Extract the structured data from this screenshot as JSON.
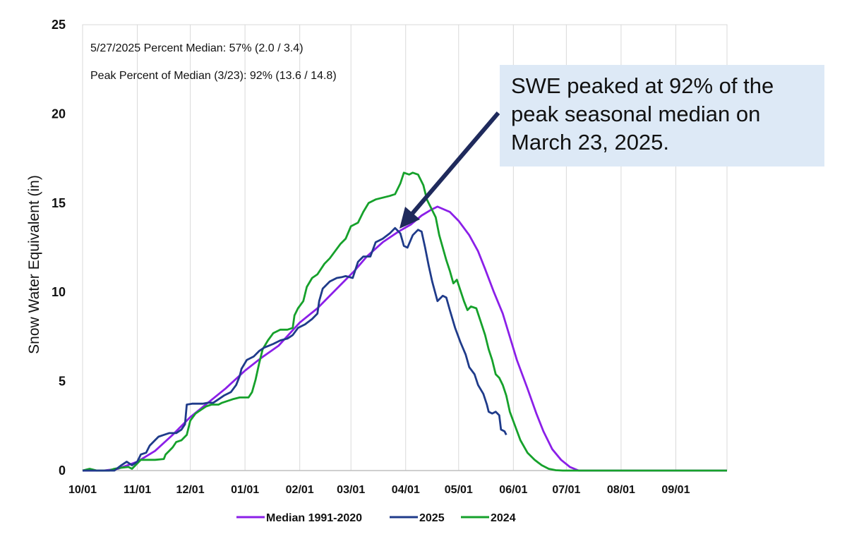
{
  "chart_data": {
    "type": "line",
    "ylabel": "Snow Water Equivalent (in)",
    "xlabel": "",
    "ylim": [
      0,
      25
    ],
    "yticks": [
      "0",
      "5",
      "10",
      "15",
      "20",
      "25"
    ],
    "x_axis": "day of water year (0 = 10/01)",
    "xticks": [
      "10/01",
      "11/01",
      "12/01",
      "01/01",
      "02/01",
      "03/01",
      "04/01",
      "05/01",
      "06/01",
      "07/01",
      "08/01",
      "09/01"
    ],
    "grid": "vertical gridlines at month starts",
    "legend_position": "bottom-center",
    "annotations": [
      "5/27/2025 Percent Median: 57% (2.0 / 3.4)",
      "Peak Percent of Median (3/23): 92% (13.6 / 14.8)"
    ],
    "callout": "SWE peaked at 92% of the peak seasonal median on March 23, 2025.",
    "series": [
      {
        "name": "Median 1991-2020",
        "color": "#8b1fe8",
        "points": [
          [
            0,
            0
          ],
          [
            12,
            0
          ],
          [
            20,
            0.1
          ],
          [
            31,
            0.5
          ],
          [
            41,
            1.1
          ],
          [
            51,
            2.0
          ],
          [
            61,
            3.0
          ],
          [
            71,
            3.8
          ],
          [
            81,
            4.6
          ],
          [
            92,
            5.6
          ],
          [
            101,
            6.3
          ],
          [
            111,
            7.0
          ],
          [
            123,
            8.3
          ],
          [
            133,
            9.1
          ],
          [
            144,
            10.2
          ],
          [
            154,
            11.2
          ],
          [
            161,
            12.0
          ],
          [
            170,
            12.8
          ],
          [
            179,
            13.4
          ],
          [
            186,
            13.8
          ],
          [
            192,
            14.3
          ],
          [
            197,
            14.6
          ],
          [
            201,
            14.8
          ],
          [
            208,
            14.5
          ],
          [
            213,
            14.0
          ],
          [
            219,
            13.2
          ],
          [
            224,
            12.3
          ],
          [
            228,
            11.3
          ],
          [
            233,
            10.0
          ],
          [
            238,
            8.8
          ],
          [
            242,
            7.5
          ],
          [
            246,
            6.2
          ],
          [
            252,
            4.6
          ],
          [
            257,
            3.2
          ],
          [
            261,
            2.2
          ],
          [
            266,
            1.2
          ],
          [
            271,
            0.6
          ],
          [
            276,
            0.2
          ],
          [
            281,
            0
          ],
          [
            365,
            0
          ]
        ]
      },
      {
        "name": "2025",
        "color": "#1f3b8a",
        "points": [
          [
            0,
            0
          ],
          [
            12,
            0
          ],
          [
            18,
            0
          ],
          [
            22,
            0.3
          ],
          [
            25,
            0.5
          ],
          [
            28,
            0.3
          ],
          [
            31,
            0.5
          ],
          [
            33,
            0.9
          ],
          [
            36,
            1.0
          ],
          [
            38,
            1.4
          ],
          [
            41,
            1.7
          ],
          [
            43,
            1.9
          ],
          [
            46,
            2.0
          ],
          [
            49,
            2.1
          ],
          [
            53,
            2.1
          ],
          [
            56,
            2.3
          ],
          [
            58,
            2.6
          ],
          [
            59,
            3.7
          ],
          [
            62,
            3.75
          ],
          [
            68,
            3.75
          ],
          [
            71,
            3.8
          ],
          [
            74,
            3.8
          ],
          [
            77,
            4.0
          ],
          [
            80,
            4.2
          ],
          [
            84,
            4.4
          ],
          [
            87,
            4.8
          ],
          [
            89,
            5.3
          ],
          [
            90,
            5.7
          ],
          [
            93,
            6.2
          ],
          [
            97,
            6.4
          ],
          [
            100,
            6.7
          ],
          [
            103,
            6.9
          ],
          [
            108,
            7.1
          ],
          [
            112,
            7.3
          ],
          [
            116,
            7.4
          ],
          [
            119,
            7.6
          ],
          [
            122,
            8.0
          ],
          [
            126,
            8.2
          ],
          [
            130,
            8.5
          ],
          [
            133,
            8.8
          ],
          [
            134,
            9.5
          ],
          [
            136,
            10.2
          ],
          [
            140,
            10.6
          ],
          [
            144,
            10.8
          ],
          [
            147,
            10.85
          ],
          [
            149,
            10.9
          ],
          [
            153,
            10.8
          ],
          [
            156,
            11.7
          ],
          [
            159,
            12.0
          ],
          [
            163,
            12.0
          ],
          [
            166,
            12.8
          ],
          [
            170,
            13.0
          ],
          [
            174,
            13.3
          ],
          [
            177,
            13.6
          ],
          [
            180,
            13.3
          ],
          [
            182,
            12.6
          ],
          [
            184,
            12.5
          ],
          [
            187,
            13.2
          ],
          [
            190,
            13.5
          ],
          [
            192,
            13.4
          ],
          [
            194,
            12.5
          ],
          [
            196,
            11.5
          ],
          [
            198,
            10.6
          ],
          [
            201,
            9.5
          ],
          [
            204,
            9.8
          ],
          [
            206,
            9.7
          ],
          [
            208,
            9.0
          ],
          [
            211,
            8.0
          ],
          [
            214,
            7.2
          ],
          [
            217,
            6.5
          ],
          [
            219,
            5.8
          ],
          [
            222,
            5.4
          ],
          [
            224,
            4.8
          ],
          [
            227,
            4.3
          ],
          [
            229,
            3.7
          ],
          [
            230,
            3.3
          ],
          [
            232,
            3.2
          ],
          [
            234,
            3.3
          ],
          [
            236,
            3.1
          ],
          [
            237,
            2.3
          ],
          [
            239,
            2.2
          ],
          [
            240,
            2.0
          ]
        ]
      },
      {
        "name": "2024",
        "color": "#16a12b",
        "points": [
          [
            0,
            0
          ],
          [
            4,
            0.1
          ],
          [
            8,
            0
          ],
          [
            12,
            0
          ],
          [
            15,
            0
          ],
          [
            18,
            0.1
          ],
          [
            21,
            0.15
          ],
          [
            26,
            0.2
          ],
          [
            28,
            0.1
          ],
          [
            30,
            0.3
          ],
          [
            33,
            0.6
          ],
          [
            37,
            0.6
          ],
          [
            41,
            0.6
          ],
          [
            46,
            0.65
          ],
          [
            47,
            0.9
          ],
          [
            49,
            1.1
          ],
          [
            51,
            1.3
          ],
          [
            53,
            1.6
          ],
          [
            56,
            1.7
          ],
          [
            59,
            2.0
          ],
          [
            61,
            2.8
          ],
          [
            64,
            3.2
          ],
          [
            67,
            3.4
          ],
          [
            70,
            3.6
          ],
          [
            73,
            3.7
          ],
          [
            77,
            3.7
          ],
          [
            79,
            3.8
          ],
          [
            82,
            3.9
          ],
          [
            85,
            4.0
          ],
          [
            89,
            4.1
          ],
          [
            94,
            4.1
          ],
          [
            96,
            4.4
          ],
          [
            98,
            5.1
          ],
          [
            100,
            6.0
          ],
          [
            102,
            6.8
          ],
          [
            105,
            7.3
          ],
          [
            108,
            7.7
          ],
          [
            112,
            7.9
          ],
          [
            116,
            7.9
          ],
          [
            119,
            8.0
          ],
          [
            120,
            8.7
          ],
          [
            122,
            9.1
          ],
          [
            125,
            9.5
          ],
          [
            127,
            10.3
          ],
          [
            130,
            10.8
          ],
          [
            133,
            11.0
          ],
          [
            137,
            11.6
          ],
          [
            140,
            11.9
          ],
          [
            143,
            12.3
          ],
          [
            146,
            12.7
          ],
          [
            149,
            13.0
          ],
          [
            152,
            13.7
          ],
          [
            156,
            13.9
          ],
          [
            159,
            14.5
          ],
          [
            162,
            15.0
          ],
          [
            166,
            15.2
          ],
          [
            170,
            15.3
          ],
          [
            174,
            15.4
          ],
          [
            177,
            15.5
          ],
          [
            180,
            16.1
          ],
          [
            182,
            16.7
          ],
          [
            185,
            16.6
          ],
          [
            187,
            16.7
          ],
          [
            190,
            16.6
          ],
          [
            193,
            16.0
          ],
          [
            195,
            15.2
          ],
          [
            197,
            14.8
          ],
          [
            200,
            14.2
          ],
          [
            202,
            13.2
          ],
          [
            204,
            12.5
          ],
          [
            206,
            11.8
          ],
          [
            208,
            11.2
          ],
          [
            210,
            10.5
          ],
          [
            212,
            10.7
          ],
          [
            214,
            10.1
          ],
          [
            216,
            9.5
          ],
          [
            218,
            9.0
          ],
          [
            220,
            9.2
          ],
          [
            223,
            9.1
          ],
          [
            225,
            8.5
          ],
          [
            228,
            7.6
          ],
          [
            230,
            6.8
          ],
          [
            232,
            6.2
          ],
          [
            234,
            5.4
          ],
          [
            236,
            5.2
          ],
          [
            238,
            4.8
          ],
          [
            240,
            4.2
          ],
          [
            242,
            3.3
          ],
          [
            245,
            2.5
          ],
          [
            248,
            1.7
          ],
          [
            252,
            1.0
          ],
          [
            256,
            0.6
          ],
          [
            260,
            0.3
          ],
          [
            264,
            0.1
          ],
          [
            268,
            0.02
          ],
          [
            272,
            0
          ],
          [
            365,
            0
          ]
        ]
      }
    ]
  }
}
